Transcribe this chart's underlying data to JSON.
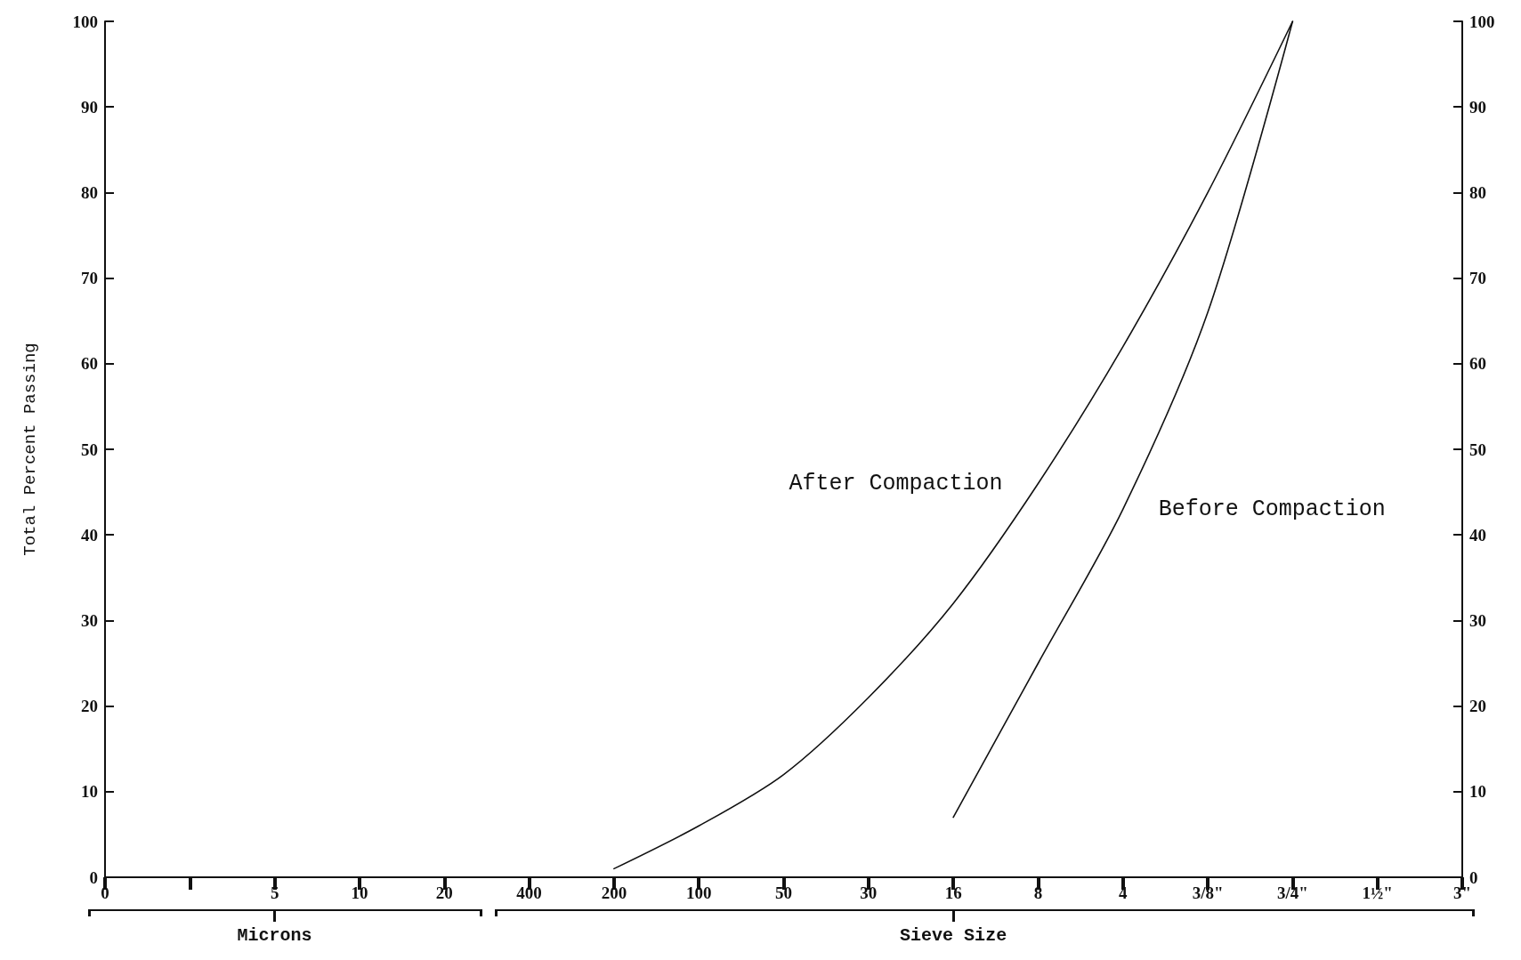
{
  "chart_data": {
    "type": "line",
    "ylabel": "Total Percent Passing",
    "annotations": [
      "Microns",
      "Sieve Size"
    ],
    "categories": [
      "0",
      null,
      "5",
      "10",
      "20",
      "400",
      "200",
      "100",
      "50",
      "30",
      "16",
      "8",
      "4",
      "3/8\"",
      "3/4\"",
      "1½\"",
      "3\""
    ],
    "ylim": [
      0,
      100
    ],
    "yticks": [
      0,
      10,
      20,
      30,
      40,
      50,
      60,
      70,
      80,
      90,
      100
    ],
    "y2lim": [
      0,
      100
    ],
    "y2ticks": [
      0,
      10,
      20,
      30,
      40,
      50,
      60,
      70,
      80,
      90,
      100
    ],
    "grid": false,
    "legend": false,
    "marker": "none",
    "line_style": "solid",
    "series": [
      {
        "name": "After Compaction",
        "color": "#111111",
        "values": [
          null,
          null,
          null,
          null,
          null,
          null,
          1,
          6,
          12,
          21,
          32,
          46,
          62,
          80,
          100,
          null,
          null
        ]
      },
      {
        "name": "Before Compaction",
        "color": "#111111",
        "values": [
          null,
          null,
          null,
          null,
          null,
          null,
          null,
          null,
          null,
          null,
          7,
          25,
          43,
          66,
          100,
          null,
          null
        ]
      }
    ]
  }
}
